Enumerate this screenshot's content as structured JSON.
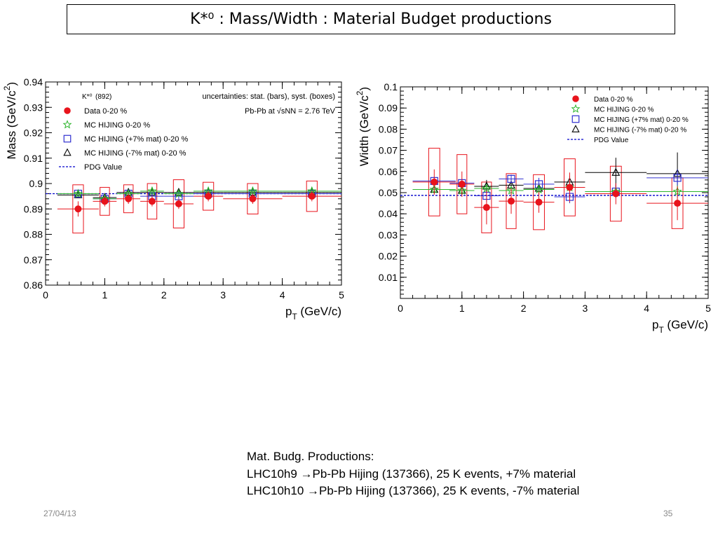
{
  "slide": {
    "title": "K*⁰ : Mass/Width : Material Budget productions",
    "notes": [
      "Mat. Budg. Productions:",
      "LHC10h9 →Pb-Pb Hijing (137366), 25 K events, +7% material",
      "LHC10h10 →Pb-Pb Hijing (137366), 25 K events, -7% material"
    ],
    "date": "27/04/13",
    "page": "35"
  },
  "colors": {
    "data": "#e8141c",
    "hij": "#2db52d",
    "plus": "#3030d0",
    "minus": "#000000",
    "pdg": "#0000cc",
    "box": "#e8141c"
  },
  "chart_data": [
    {
      "type": "scatter",
      "title": "",
      "xlabel": "p_T (GeV/c)",
      "ylabel": "Mass (GeV/c²)",
      "xlim": [
        0,
        5
      ],
      "ylim": [
        0.86,
        0.94
      ],
      "x_ticks": [
        0,
        1,
        2,
        3,
        4,
        5
      ],
      "y_ticks": [
        0.86,
        0.87,
        0.88,
        0.89,
        0.9,
        0.91,
        0.92,
        0.93,
        0.94
      ],
      "header_left": "K*⁰(892)",
      "header_right": "uncertainties: stat. (bars), syst. (boxes)",
      "header_right2": "Pb-Pb at √sNN = 2.76 TeV",
      "pdg_value": 0.896,
      "legend": [
        "Data 0-20 %",
        "MC HIJING 0-20 %",
        "MC HIJING (+7% mat) 0-20 %",
        "MC HIJING (-7% mat) 0-20 %",
        "PDG Value"
      ],
      "legend_placement": "top-left",
      "x": [
        0.55,
        1.0,
        1.4,
        1.8,
        2.25,
        2.75,
        3.5,
        4.5
      ],
      "x_halfwidth": [
        0.35,
        0.2,
        0.2,
        0.2,
        0.25,
        0.25,
        0.5,
        0.5
      ],
      "series": [
        {
          "name": "Data 0-20 %",
          "marker": "circle",
          "values": [
            0.89,
            0.893,
            0.894,
            0.893,
            0.892,
            0.895,
            0.894,
            0.895
          ],
          "stat": [
            0.003,
            0.002,
            0.002,
            0.002,
            0.002,
            0.002,
            0.002,
            0.002
          ],
          "syst": [
            0.0095,
            0.0055,
            0.0055,
            0.007,
            0.0095,
            0.0055,
            0.006,
            0.006
          ]
        },
        {
          "name": "MC HIJING 0-20 %",
          "marker": "star",
          "values": [
            0.896,
            0.894,
            0.896,
            0.897,
            0.896,
            0.897,
            0.897,
            0.897
          ],
          "stat": [
            0.001,
            0.001,
            0.001,
            0.001,
            0.001,
            0.001,
            0.001,
            0.001
          ]
        },
        {
          "name": "MC HIJING (+7% mat) 0-20 %",
          "marker": "square",
          "values": [
            0.896,
            0.894,
            0.896,
            0.895,
            0.895,
            0.896,
            0.896,
            0.896
          ],
          "stat": [
            0.001,
            0.001,
            0.001,
            0.001,
            0.001,
            0.001,
            0.001,
            0.001
          ]
        },
        {
          "name": "MC HIJING (-7% mat) 0-20 %",
          "marker": "triangle",
          "values": [
            0.8955,
            0.8945,
            0.8965,
            0.8965,
            0.8965,
            0.8965,
            0.8965,
            0.8965
          ],
          "stat": [
            0.001,
            0.001,
            0.001,
            0.001,
            0.001,
            0.001,
            0.001,
            0.001
          ]
        }
      ]
    },
    {
      "type": "scatter",
      "title": "",
      "xlabel": "p_T (GeV/c)",
      "ylabel": "Width (GeV/c²)",
      "xlim": [
        0,
        5
      ],
      "ylim": [
        0,
        0.1
      ],
      "x_ticks": [
        0,
        1,
        2,
        3,
        4,
        5
      ],
      "y_ticks": [
        0.01,
        0.02,
        0.03,
        0.04,
        0.05,
        0.06,
        0.07,
        0.08,
        0.09,
        0.1
      ],
      "pdg_value": 0.0487,
      "legend": [
        "Data 0-20 %",
        "MC HIJING 0-20 %",
        "MC HIJING (+7% mat) 0-20 %",
        "MC HIJING (-7% mat) 0-20 %",
        "PDG Value"
      ],
      "legend_placement": "top-right",
      "x": [
        0.55,
        1.0,
        1.4,
        1.8,
        2.25,
        2.75,
        3.5,
        4.5
      ],
      "x_halfwidth": [
        0.35,
        0.2,
        0.2,
        0.2,
        0.25,
        0.25,
        0.5,
        0.5
      ],
      "series": [
        {
          "name": "Data 0-20 %",
          "marker": "circle",
          "values": [
            0.055,
            0.054,
            0.043,
            0.046,
            0.0455,
            0.0525,
            0.0495,
            0.045
          ],
          "stat": [
            0.006,
            0.006,
            0.008,
            0.006,
            0.005,
            0.007,
            0.005,
            0.008
          ],
          "syst": [
            0.016,
            0.014,
            0.012,
            0.013,
            0.013,
            0.0135,
            0.013,
            0.012
          ]
        },
        {
          "name": "MC HIJING 0-20 %",
          "marker": "star",
          "values": [
            0.0515,
            0.051,
            0.052,
            0.051,
            0.0515,
            0.0525,
            0.0505,
            0.0505
          ],
          "stat": [
            0.002,
            0.002,
            0.002,
            0.002,
            0.002,
            0.002,
            0.002,
            0.003
          ]
        },
        {
          "name": "MC HIJING (+7% mat) 0-20 %",
          "marker": "square",
          "values": [
            0.0555,
            0.0545,
            0.0485,
            0.0565,
            0.054,
            0.048,
            0.0505,
            0.057
          ],
          "stat": [
            0.002,
            0.002,
            0.003,
            0.002,
            0.003,
            0.003,
            0.003,
            0.004
          ]
        },
        {
          "name": "MC HIJING (-7% mat) 0-20 %",
          "marker": "triangle",
          "values": [
            0.0515,
            0.051,
            0.053,
            0.0535,
            0.052,
            0.055,
            0.0595,
            0.059
          ],
          "stat": [
            0.002,
            0.002,
            0.003,
            0.003,
            0.003,
            0.003,
            0.007,
            0.01
          ]
        }
      ]
    }
  ]
}
